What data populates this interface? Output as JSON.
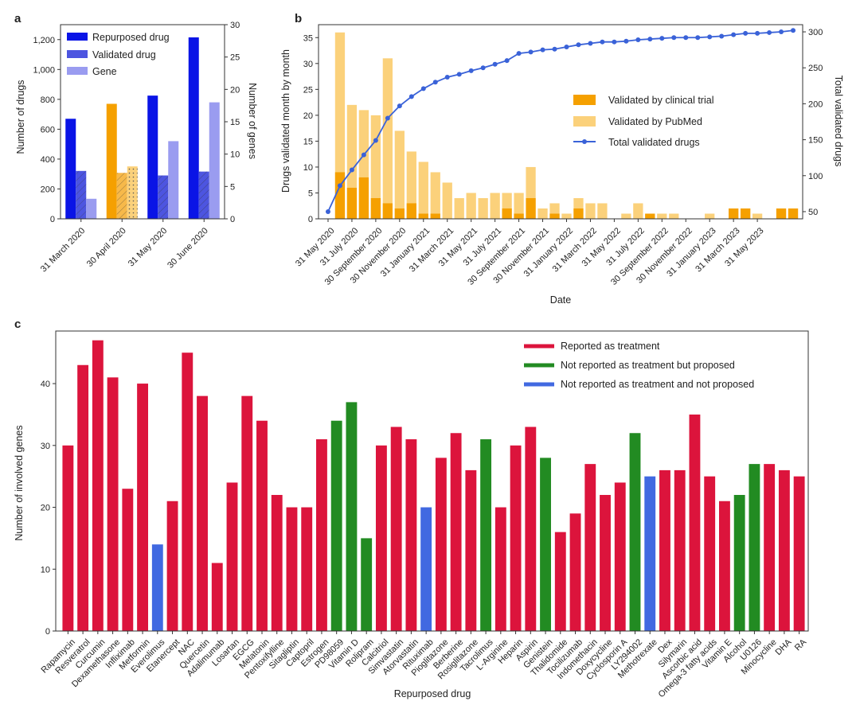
{
  "colors": {
    "blue": "#0a14e6",
    "blue_mid": "#4d55e0",
    "blue_light": "#9a9cf0",
    "orange": "#f5a000",
    "orange_light": "#fbd17b",
    "line": "#3a62d8",
    "red": "#dc143c",
    "green": "#228b22",
    "royal": "#4169e1"
  },
  "chart_data": [
    {
      "panel": "a",
      "type": "bar",
      "categories": [
        "31 March 2020",
        "30 April 2020",
        "31 May 2020",
        "30 June 2020"
      ],
      "series": [
        {
          "name": "Repurposed drug",
          "axis": "left",
          "values": [
            670,
            770,
            825,
            1215
          ]
        },
        {
          "name": "Validated drug",
          "axis": "right",
          "values": [
            7.4,
            7.1,
            6.7,
            7.3
          ]
        },
        {
          "name": "Gene",
          "axis": "right",
          "values": [
            3.1,
            8.1,
            12.0,
            18.0
          ]
        }
      ],
      "ylabel": "Number of drugs",
      "ylabel_right": "Number of genes",
      "ylim": [
        0,
        1300
      ],
      "ylim_right": [
        0,
        30
      ],
      "yticks": [
        "0",
        "200",
        "400",
        "600",
        "800",
        "1,000",
        "1,200"
      ],
      "yticks_right": [
        "0",
        "5",
        "10",
        "15",
        "20",
        "25",
        "30"
      ],
      "legend": [
        "Repurposed drug",
        "Validated drug",
        "Gene"
      ]
    },
    {
      "panel": "b",
      "type": "bar",
      "xlabel": "Date",
      "ylabel": "Drugs validated month by month",
      "ylabel_right": "Total validated drugs",
      "ylim": [
        0,
        37.5
      ],
      "ylim_right": [
        40,
        310
      ],
      "yticks": [
        "0",
        "5",
        "10",
        "15",
        "20",
        "25",
        "30",
        "35"
      ],
      "yticks_right": [
        "50",
        "100",
        "150",
        "200",
        "250",
        "300"
      ],
      "tick_labels": [
        "31 May 2020",
        "31 July 2020",
        "30 September 2020",
        "30 November 2020",
        "31 January 2021",
        "31 March 2021",
        "31 May 2021",
        "31 July 2021",
        "30 September 2021",
        "30 November 2021",
        "31 January 2022",
        "31 March 2022",
        "31 May 2022",
        "31 July 2022",
        "30 September 2022",
        "30 November 2022",
        "31 January 2023",
        "31 March 2023",
        "31 May 2023"
      ],
      "series": [
        {
          "name": "Validated by clinical trial",
          "values": [
            0,
            9,
            6,
            8,
            4,
            3,
            2,
            3,
            1,
            1,
            0,
            0,
            0,
            0,
            0,
            2,
            1,
            4,
            0,
            1,
            0,
            2,
            0,
            0,
            0,
            0,
            0,
            1,
            0,
            0,
            0,
            0,
            0,
            0,
            2,
            2,
            0,
            0,
            2,
            2
          ]
        },
        {
          "name": "Validated by PubMed",
          "values": [
            0,
            36,
            22,
            21,
            20,
            31,
            17,
            13,
            11,
            9,
            7,
            4,
            5,
            4,
            5,
            5,
            5,
            10,
            2,
            3,
            1,
            4,
            3,
            3,
            0,
            1,
            3,
            1,
            1,
            1,
            0,
            0,
            1,
            0,
            2,
            2,
            1,
            0,
            2,
            2
          ]
        },
        {
          "name": "Total validated drugs",
          "values": [
            50,
            86,
            108,
            129,
            149,
            180,
            197,
            210,
            221,
            230,
            237,
            241,
            246,
            250,
            255,
            260,
            270,
            272,
            275,
            276,
            279,
            282,
            284,
            286,
            286,
            287,
            289,
            290,
            291,
            292,
            292,
            292,
            293,
            294,
            296,
            298,
            298,
            299,
            300,
            302
          ]
        }
      ],
      "legend": [
        "Validated by clinical trial",
        "Validated by PubMed",
        "Total validated drugs"
      ]
    },
    {
      "panel": "c",
      "type": "bar",
      "xlabel": "Repurposed drug",
      "ylabel": "Number of involved genes",
      "ylim": [
        0,
        48.5
      ],
      "yticks": [
        "0",
        "10",
        "20",
        "30",
        "40"
      ],
      "categories": [
        "Rapamycin",
        "Resveratrol",
        "Curcumin",
        "Dexamethasone",
        "Infliximab",
        "Metformin",
        "Everolimus",
        "Etanercept",
        "NAC",
        "Quercetin",
        "Adalimumab",
        "Losartan",
        "EGCG",
        "Melatonin",
        "Pentoxifylline",
        "Sitagliptin",
        "Captopril",
        "Estrogen",
        "PD98059",
        "Vitamin D",
        "Rolipram",
        "Calcitriol",
        "Simvastatin",
        "Atorvastatin",
        "Rituximab",
        "Pioglitazone",
        "Berberine",
        "Rosiglitazone",
        "Tacrolimus",
        "L-Arginine",
        "Heparin",
        "Aspirin",
        "Genistein",
        "Thalidomide",
        "Tocilizumab",
        "Indomethacin",
        "Doxycycline",
        "Cyclosporin A",
        "LY294002",
        "Methotrexate",
        "Dex",
        "Silymarin",
        "Ascorbic acid",
        "Omega-3 fatty acids",
        "Vitamin E",
        "Alcohol",
        "U0126",
        "Minocycline",
        "DHA",
        "RA"
      ],
      "values": [
        30,
        43,
        47,
        41,
        23,
        40,
        14,
        21,
        45,
        38,
        11,
        24,
        38,
        34,
        22,
        20,
        20,
        31,
        34,
        37,
        15,
        30,
        33,
        31,
        20,
        28,
        32,
        26,
        31,
        20,
        30,
        33,
        28,
        16,
        19,
        27,
        22,
        24,
        32,
        25,
        26,
        26,
        35,
        25,
        21,
        22,
        27,
        27,
        26,
        25
      ],
      "groups": [
        "r",
        "r",
        "r",
        "r",
        "r",
        "r",
        "b",
        "r",
        "r",
        "r",
        "r",
        "r",
        "r",
        "r",
        "r",
        "r",
        "r",
        "r",
        "g",
        "g",
        "g",
        "r",
        "r",
        "r",
        "b",
        "r",
        "r",
        "r",
        "g",
        "r",
        "r",
        "r",
        "g",
        "r",
        "r",
        "r",
        "r",
        "r",
        "g",
        "b",
        "r",
        "r",
        "r",
        "r",
        "r",
        "g",
        "g",
        "r",
        "r",
        "r"
      ],
      "legend": [
        "Reported as treatment",
        "Not reported as treatment but proposed",
        "Not reported as treatment and not proposed"
      ]
    }
  ]
}
